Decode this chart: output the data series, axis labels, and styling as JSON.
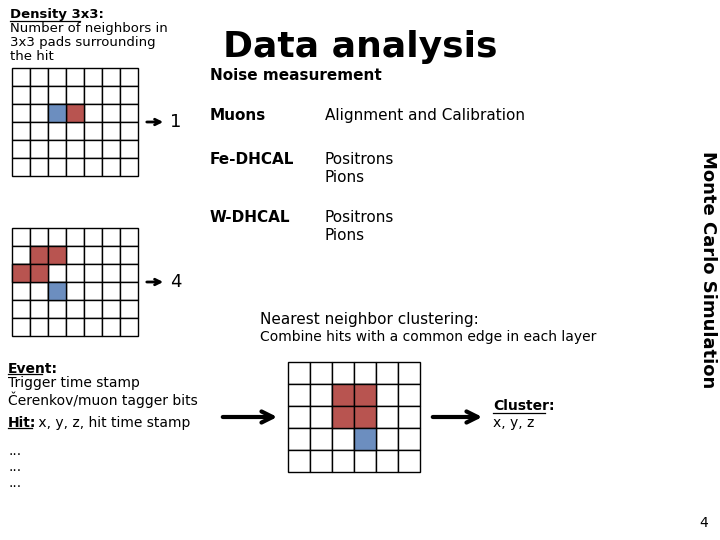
{
  "title": "Data analysis",
  "background_color": "#ffffff",
  "density_label": "Density 3x3:",
  "density_desc1": "Number of neighbors in",
  "density_desc2": "3x3 pads surrounding",
  "density_desc3": "the hit",
  "noise_measurement": "Noise measurement",
  "muons_label": "Muons",
  "alignment_label": "Alignment and Calibration",
  "fe_dhcal_label": "Fe-DHCAL",
  "positrons1": "Positrons",
  "pions1": "Pions",
  "w_dhcal_label": "W-DHCAL",
  "positrons2": "Positrons",
  "pions2": "Pions",
  "monte_carlo": "Monte Carlo Simulation",
  "nearest_neighbor": "Nearest neighbor clustering:",
  "combine_hits": "Combine hits with a common edge in each layer",
  "event_label": "Event:",
  "event_desc1": "Trigger time stamp",
  "event_desc2": "Čerenkov/muon tagger bits",
  "hit_label": "Hit:",
  "hit_desc": " x, y, z, hit time stamp",
  "cluster_label": "Cluster:",
  "cluster_desc": "x, y, z",
  "page_number": "4",
  "red_color": "#b85450",
  "blue_color": "#6c8ebf",
  "grid_color": "#000000",
  "text_color": "#000000"
}
